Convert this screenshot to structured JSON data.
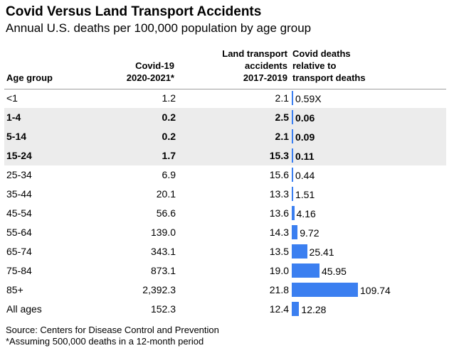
{
  "chart_data": {
    "type": "table",
    "title": "Covid Versus Land Transport Accidents",
    "subtitle": "Annual U.S. deaths per 100,000 population by age group",
    "columns": {
      "age": "Age group",
      "covid": "Covid-19\n2020-2021*",
      "land": "Land transport\naccidents\n2017-2019",
      "ratio": "Covid deaths\nrelative to\ntransport deaths"
    },
    "rows": [
      {
        "age": "<1",
        "covid": "1.2",
        "land": "2.1",
        "ratio": "0.59X",
        "ratio_value": 0.59,
        "highlight": false
      },
      {
        "age": "1-4",
        "covid": "0.2",
        "land": "2.5",
        "ratio": "0.06",
        "ratio_value": 0.06,
        "highlight": true
      },
      {
        "age": "5-14",
        "covid": "0.2",
        "land": "2.1",
        "ratio": "0.09",
        "ratio_value": 0.09,
        "highlight": true
      },
      {
        "age": "15-24",
        "covid": "1.7",
        "land": "15.3",
        "ratio": "0.11",
        "ratio_value": 0.11,
        "highlight": true
      },
      {
        "age": "25-34",
        "covid": "6.9",
        "land": "15.6",
        "ratio": "0.44",
        "ratio_value": 0.44,
        "highlight": false
      },
      {
        "age": "35-44",
        "covid": "20.1",
        "land": "13.3",
        "ratio": "1.51",
        "ratio_value": 1.51,
        "highlight": false
      },
      {
        "age": "45-54",
        "covid": "56.6",
        "land": "13.6",
        "ratio": "4.16",
        "ratio_value": 4.16,
        "highlight": false
      },
      {
        "age": "55-64",
        "covid": "139.0",
        "land": "14.3",
        "ratio": "9.72",
        "ratio_value": 9.72,
        "highlight": false
      },
      {
        "age": "65-74",
        "covid": "343.1",
        "land": "13.5",
        "ratio": "25.41",
        "ratio_value": 25.41,
        "highlight": false
      },
      {
        "age": "75-84",
        "covid": "873.1",
        "land": "19.0",
        "ratio": "45.95",
        "ratio_value": 45.95,
        "highlight": false
      },
      {
        "age": "85+",
        "covid": "2,392.3",
        "land": "21.8",
        "ratio": "109.74",
        "ratio_value": 109.74,
        "highlight": false
      },
      {
        "age": "All ages",
        "covid": "152.3",
        "land": "12.4",
        "ratio": "12.28",
        "ratio_value": 12.28,
        "highlight": false
      }
    ],
    "bar_color": "#3b7ff0",
    "highlight_color": "#ececec"
  },
  "footer": {
    "source": "Source: Centers for Disease Control and Prevention",
    "note": "*Assuming 500,000 deaths in a 12-month period"
  }
}
